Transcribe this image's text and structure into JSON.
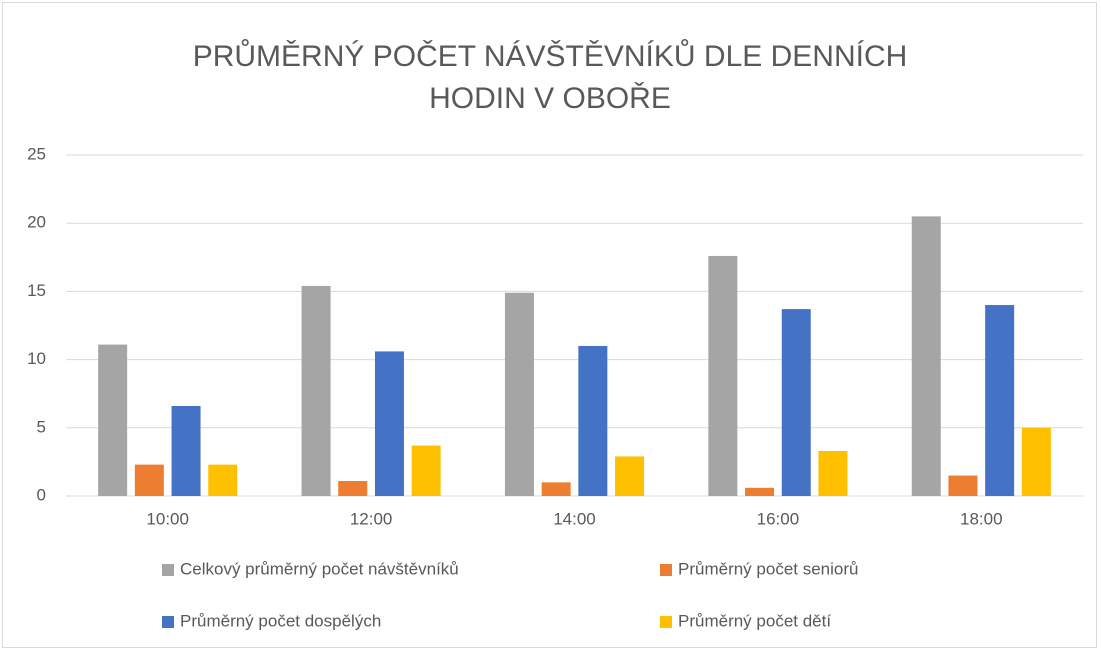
{
  "chart_data": {
    "type": "bar",
    "title": "PRŮMĚRNÝ POČET NÁVŠTĚVNÍKŮ DLE DENNÍCH HODIN V OBOŘE",
    "categories": [
      "10:00",
      "12:00",
      "14:00",
      "16:00",
      "18:00"
    ],
    "series": [
      {
        "name": "Celkový průměrný počet návštěvníků",
        "color": "#a5a5a5",
        "values": [
          11.1,
          15.4,
          14.9,
          17.6,
          20.5
        ]
      },
      {
        "name": "Průměrný počet seniorů",
        "color": "#ed7d31",
        "values": [
          2.3,
          1.1,
          1.0,
          0.6,
          1.5
        ]
      },
      {
        "name": "Průměrný počet dospělých",
        "color": "#4472c4",
        "values": [
          6.6,
          10.6,
          11.0,
          13.7,
          14.0
        ]
      },
      {
        "name": "Průměrný počet dětí",
        "color": "#ffc000",
        "values": [
          2.3,
          3.7,
          2.9,
          3.3,
          5.0
        ]
      }
    ],
    "ylim": [
      0,
      25
    ],
    "yticks": [
      0,
      5,
      10,
      15,
      20,
      25
    ],
    "grid": true,
    "legend": "bottom"
  }
}
